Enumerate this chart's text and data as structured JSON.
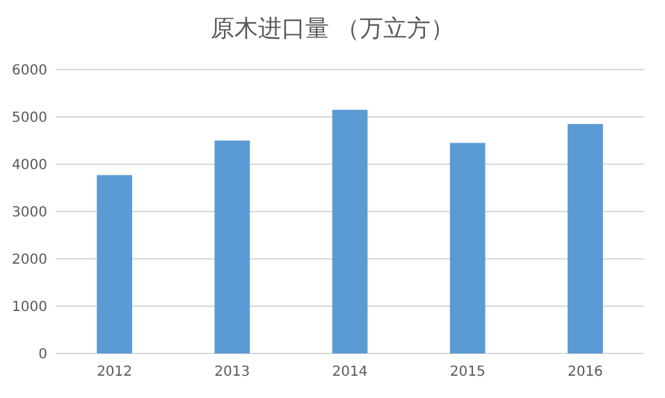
{
  "chart_data": {
    "type": "bar",
    "title": "原木进口量 （万立方）",
    "categories": [
      "2012",
      "2013",
      "2014",
      "2015",
      "2016"
    ],
    "values": [
      3770,
      4500,
      5150,
      4450,
      4850
    ],
    "color": "#5b9bd5",
    "ylim": [
      0,
      6000
    ],
    "yticks": [
      0,
      1000,
      2000,
      3000,
      4000,
      5000,
      6000
    ],
    "grid": "y"
  }
}
